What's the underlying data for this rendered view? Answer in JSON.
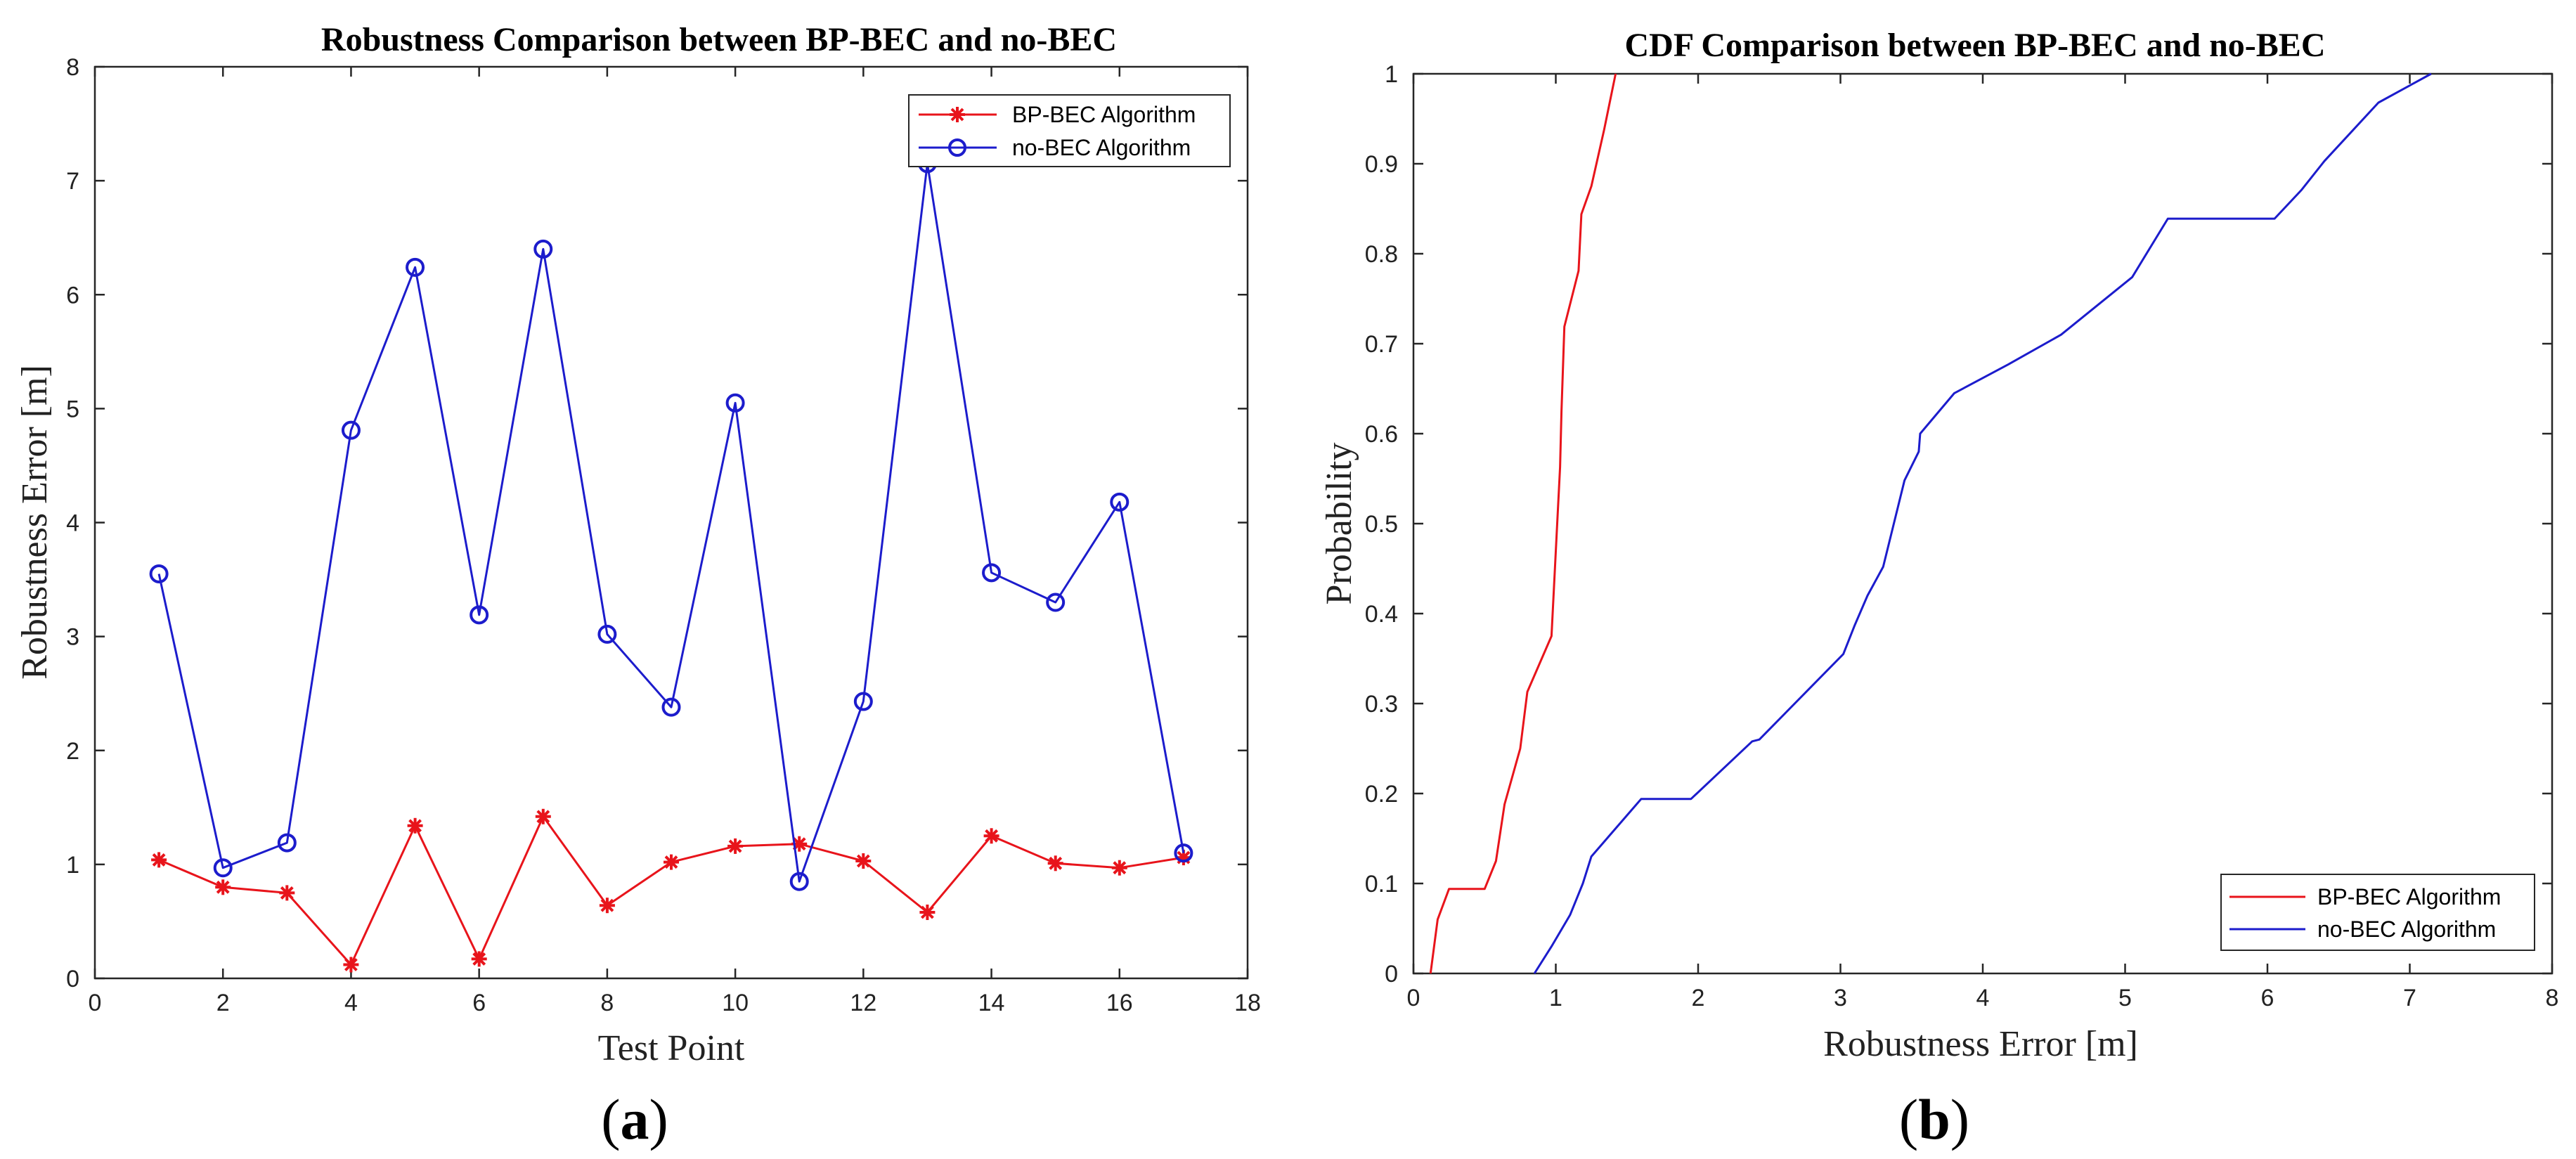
{
  "chart_data": [
    {
      "type": "line",
      "title": "Robustness Comparison between BP-BEC and no-BEC",
      "xlabel": "Test Point",
      "ylabel": "Robustness Error [m]",
      "xlim": [
        0,
        18
      ],
      "ylim": [
        0,
        8
      ],
      "xticks": [
        0,
        2,
        4,
        6,
        8,
        10,
        12,
        14,
        16,
        18
      ],
      "yticks": [
        0,
        1,
        2,
        3,
        4,
        5,
        6,
        7,
        8
      ],
      "legend_position": "top-right",
      "panel_label": "a",
      "series": [
        {
          "name": "BP-BEC Algorithm",
          "color": "#e8141b",
          "marker": "asterisk",
          "x": [
            1,
            2,
            3,
            4,
            5,
            6,
            7,
            8,
            9,
            10,
            11,
            12,
            13,
            14,
            15,
            16,
            17
          ],
          "values": [
            1.04,
            0.8,
            0.75,
            0.12,
            1.34,
            0.17,
            1.42,
            0.64,
            1.02,
            1.16,
            1.18,
            1.03,
            0.58,
            1.25,
            1.01,
            0.97,
            1.06
          ]
        },
        {
          "name": "no-BEC Algorithm",
          "color": "#1c1ccc",
          "marker": "circle",
          "x": [
            1,
            2,
            3,
            4,
            5,
            6,
            7,
            8,
            9,
            10,
            11,
            12,
            13,
            14,
            15,
            16,
            17
          ],
          "values": [
            3.55,
            0.97,
            1.19,
            4.81,
            6.24,
            3.19,
            6.4,
            3.02,
            2.38,
            5.05,
            0.85,
            2.43,
            7.15,
            3.56,
            3.3,
            4.18,
            1.1
          ]
        }
      ]
    },
    {
      "type": "line",
      "title": "CDF Comparison between BP-BEC and no-BEC",
      "xlabel": "Robustness Error [m]",
      "ylabel": "Probability",
      "xlim": [
        0,
        8
      ],
      "ylim": [
        0,
        1
      ],
      "xticks": [
        0,
        1,
        2,
        3,
        4,
        5,
        6,
        7,
        8
      ],
      "yticks": [
        0,
        0.1,
        0.2,
        0.3,
        0.4,
        0.5,
        0.6,
        0.7,
        0.8,
        0.9,
        1
      ],
      "legend_position": "bottom-right",
      "panel_label": "b",
      "series": [
        {
          "name": "BP-BEC Algorithm",
          "color": "#e8141b",
          "x": [
            0.12,
            0.17,
            0.25,
            0.3,
            0.5,
            0.58,
            0.64,
            0.75,
            0.8,
            0.97,
            1.01,
            1.03,
            1.04,
            1.06,
            1.16,
            1.18,
            1.25,
            1.34,
            1.42
          ],
          "values": [
            0,
            0.06,
            0.094,
            0.094,
            0.094,
            0.125,
            0.188,
            0.25,
            0.313,
            0.375,
            0.5,
            0.563,
            0.625,
            0.719,
            0.781,
            0.844,
            0.875,
            0.938,
            1.0
          ]
        },
        {
          "name": "no-BEC Algorithm",
          "color": "#1c1ccc",
          "x": [
            0.85,
            0.97,
            1.1,
            1.19,
            1.25,
            1.6,
            1.95,
            2.38,
            2.43,
            3.02,
            3.1,
            3.19,
            3.3,
            3.45,
            3.55,
            3.56,
            3.8,
            4.18,
            4.55,
            5.05,
            5.3,
            6.05,
            6.24,
            6.4,
            6.78,
            7.15
          ],
          "values": [
            0,
            0.03,
            0.065,
            0.1,
            0.13,
            0.194,
            0.194,
            0.258,
            0.26,
            0.355,
            0.387,
            0.42,
            0.452,
            0.548,
            0.58,
            0.6,
            0.645,
            0.677,
            0.71,
            0.774,
            0.839,
            0.839,
            0.871,
            0.903,
            0.968,
            1.0
          ]
        }
      ]
    }
  ]
}
